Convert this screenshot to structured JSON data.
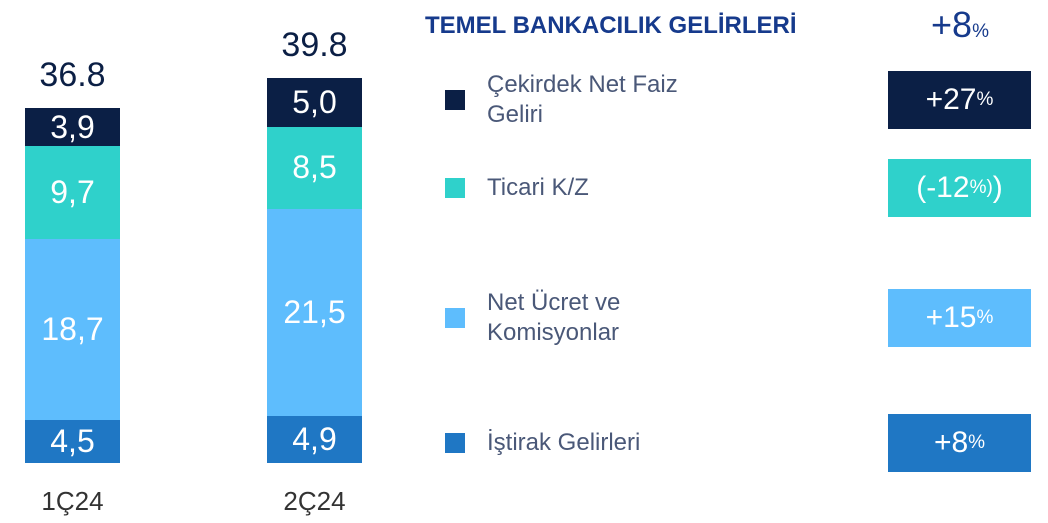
{
  "chart_data": {
    "type": "bar",
    "stacked": true,
    "title": "TEMEL BANKACILIK GELİRLERİ",
    "title_change": {
      "value": 8,
      "label": "+8%"
    },
    "categories": [
      "1Ç24",
      "2Ç24"
    ],
    "totals": [
      36.8,
      39.8
    ],
    "series": [
      {
        "name": "İştirak Gelirleri",
        "color": "#1f77c4",
        "values": [
          4.5,
          4.9
        ],
        "value_labels": [
          "4,5",
          "4,9"
        ],
        "change": {
          "value": 8,
          "label": "+8%"
        }
      },
      {
        "name": "Net Ücret ve Komisyonlar",
        "color": "#5ebdfd",
        "values": [
          18.7,
          21.5
        ],
        "value_labels": [
          "18,7",
          "21,5"
        ],
        "change": {
          "value": 15,
          "label": "+15%"
        }
      },
      {
        "name": "Ticari K/Z",
        "color": "#2fd1cb",
        "values": [
          9.7,
          8.5
        ],
        "value_labels": [
          "9,7",
          "8,5"
        ],
        "change": {
          "value": -12,
          "label": "(-12%)"
        }
      },
      {
        "name": "Çekirdek Net Faiz Geliri",
        "color": "#0b1f45",
        "values": [
          3.9,
          5.0
        ],
        "value_labels": [
          "3,9",
          "5,0"
        ],
        "change": {
          "value": 27,
          "label": "+27%"
        }
      }
    ]
  }
}
